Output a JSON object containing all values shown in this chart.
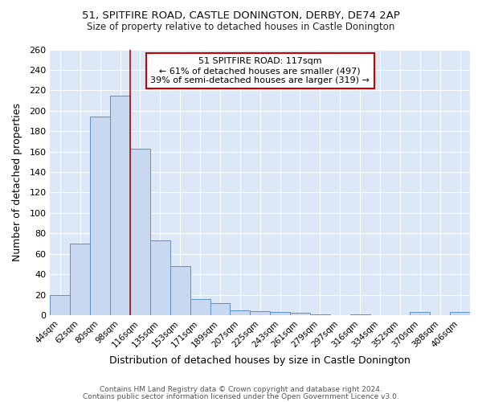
{
  "title1": "51, SPITFIRE ROAD, CASTLE DONINGTON, DERBY, DE74 2AP",
  "title2": "Size of property relative to detached houses in Castle Donington",
  "xlabel": "Distribution of detached houses by size in Castle Donington",
  "ylabel": "Number of detached properties",
  "categories": [
    "44sqm",
    "62sqm",
    "80sqm",
    "98sqm",
    "116sqm",
    "135sqm",
    "153sqm",
    "171sqm",
    "189sqm",
    "207sqm",
    "225sqm",
    "243sqm",
    "261sqm",
    "279sqm",
    "297sqm",
    "316sqm",
    "334sqm",
    "352sqm",
    "370sqm",
    "388sqm",
    "406sqm"
  ],
  "values": [
    20,
    70,
    194,
    215,
    163,
    73,
    48,
    16,
    12,
    5,
    4,
    3,
    2,
    1,
    0,
    1,
    0,
    0,
    3,
    0,
    3
  ],
  "bar_color": "#c8d8f0",
  "bar_edge_color": "#6090c8",
  "plot_bg_color": "#dce8f8",
  "fig_bg_color": "#ffffff",
  "grid_color": "#ffffff",
  "vline_x_index": 4,
  "vline_color": "#cc0000",
  "annotation_text": "51 SPITFIRE ROAD: 117sqm\n← 61% of detached houses are smaller (497)\n39% of semi-detached houses are larger (319) →",
  "annotation_box_color": "#ffffff",
  "annotation_box_edge": "#cc0000",
  "footer1": "Contains HM Land Registry data © Crown copyright and database right 2024.",
  "footer2": "Contains public sector information licensed under the Open Government Licence v3.0.",
  "ylim": [
    0,
    260
  ],
  "yticks": [
    0,
    20,
    40,
    60,
    80,
    100,
    120,
    140,
    160,
    180,
    200,
    220,
    240,
    260
  ]
}
